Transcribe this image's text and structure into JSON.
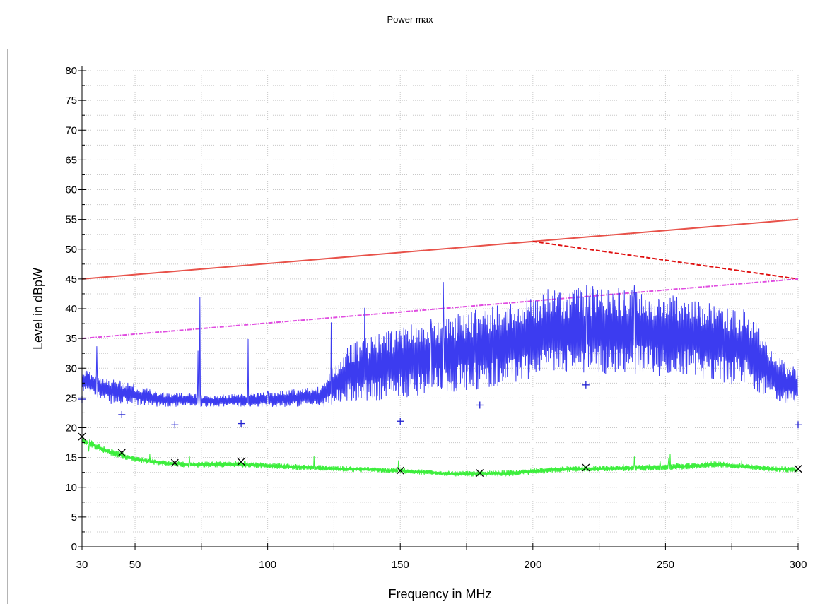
{
  "title": "Power max",
  "chart_data": {
    "type": "line",
    "title": "Power max",
    "xlabel": "Frequency in MHz",
    "ylabel": "Level in dBpW",
    "xlim": [
      30,
      300
    ],
    "ylim": [
      0,
      80
    ],
    "x_scale": "linear",
    "grid": true,
    "xticks": [
      30,
      50,
      100,
      150,
      200,
      250,
      300
    ],
    "yticks": [
      0,
      5,
      10,
      15,
      20,
      25,
      30,
      35,
      40,
      45,
      50,
      55,
      60,
      65,
      70,
      75,
      80
    ],
    "series": [
      {
        "name": "",
        "kind": "line",
        "color": "#e8524a",
        "dash": "solid",
        "x": [
          30,
          300
        ],
        "y": [
          45,
          55
        ]
      },
      {
        "name": "",
        "kind": "line",
        "color": "#e01010",
        "dash": "dashed",
        "x": [
          200,
          300
        ],
        "y": [
          51.3,
          45
        ]
      },
      {
        "name": "",
        "kind": "line",
        "color": "#e04ce0",
        "dash": "dashdot",
        "x": [
          30,
          300
        ],
        "y": [
          35,
          45
        ]
      },
      {
        "name": "",
        "kind": "noise",
        "color": "#3c3cf0",
        "x": [
          30,
          40,
          60,
          80,
          100,
          120,
          130,
          150,
          170,
          190,
          205,
          230,
          260,
          280,
          295,
          300
        ],
        "low": [
          26,
          24,
          23.5,
          23.5,
          23.5,
          23.5,
          24,
          25,
          26,
          27,
          29,
          29,
          28.5,
          27,
          24,
          24
        ],
        "high": [
          30,
          28.5,
          26,
          25.5,
          26,
          27,
          34,
          37,
          39,
          41,
          43,
          44,
          42,
          40,
          31,
          30
        ],
        "peak": 45
      },
      {
        "name": "",
        "kind": "noise",
        "color": "#3cee3c",
        "x": [
          30,
          40,
          50,
          60,
          70,
          90,
          110,
          150,
          170,
          190,
          210,
          250,
          270,
          290,
          300
        ],
        "low": [
          17.3,
          15.4,
          14.2,
          13.6,
          13.3,
          13.3,
          12.9,
          12.3,
          11.8,
          11.8,
          12.5,
          12.8,
          13.3,
          12.6,
          12.4
        ],
        "high": [
          18.6,
          16.6,
          15.2,
          14.6,
          14.3,
          14.4,
          13.9,
          13.2,
          12.7,
          12.9,
          13.5,
          13.9,
          14.4,
          13.6,
          13.4
        ],
        "peak": 16
      },
      {
        "name": "",
        "kind": "markers",
        "marker": "plus",
        "color": "#2020d0",
        "x": [
          30,
          45,
          65,
          90,
          150,
          180,
          220,
          300
        ],
        "y": [
          24.8,
          22.2,
          20.5,
          20.7,
          21.1,
          23.8,
          27.2,
          20.5
        ]
      },
      {
        "name": "",
        "kind": "markers",
        "marker": "x",
        "color": "#000000",
        "x": [
          30,
          45,
          65,
          90,
          150,
          180,
          220,
          300
        ],
        "y": [
          18.5,
          15.8,
          14.1,
          14.3,
          12.8,
          12.4,
          13.3,
          13.1
        ]
      }
    ]
  }
}
